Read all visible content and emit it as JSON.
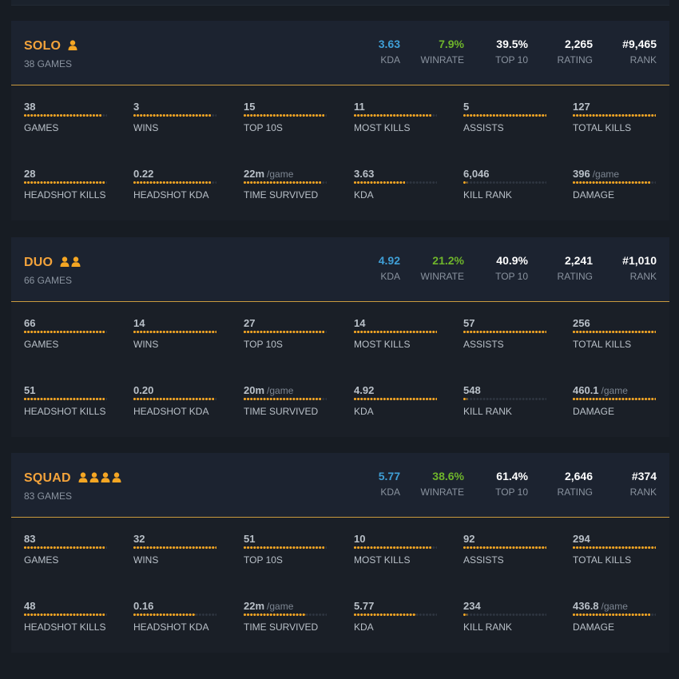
{
  "colors": {
    "accent": "#f5a623",
    "kda": "#3f9fd6",
    "winrate": "#6fb52b"
  },
  "modes": [
    {
      "name": "SOLO",
      "players": 1,
      "games_label": "38 GAMES",
      "header": {
        "kda": {
          "value": "3.63",
          "label": "KDA"
        },
        "winrate": {
          "value": "7.9%",
          "label": "WINRATE"
        },
        "top10": {
          "value": "39.5%",
          "label": "TOP 10"
        },
        "rating": {
          "value": "2,265",
          "label": "RATING"
        },
        "rank": {
          "value": "#9,465",
          "label": "RANK"
        }
      },
      "stats": [
        {
          "value": "38",
          "unit": "",
          "label": "GAMES",
          "fill": 0.93
        },
        {
          "value": "3",
          "unit": "",
          "label": "WINS",
          "fill": 0.93
        },
        {
          "value": "15",
          "unit": "",
          "label": "TOP 10S",
          "fill": 0.97
        },
        {
          "value": "11",
          "unit": "",
          "label": "MOST KILLS",
          "fill": 0.93
        },
        {
          "value": "5",
          "unit": "",
          "label": "ASSISTS",
          "fill": 1.0
        },
        {
          "value": "127",
          "unit": "",
          "label": "TOTAL KILLS",
          "fill": 1.0
        },
        {
          "value": "28",
          "unit": "",
          "label": "HEADSHOT KILLS",
          "fill": 0.97
        },
        {
          "value": "0.22",
          "unit": "",
          "label": "HEADSHOT KDA",
          "fill": 0.93
        },
        {
          "value": "22m",
          "unit": "/game",
          "label": "TIME SURVIVED",
          "fill": 0.93
        },
        {
          "value": "3.63",
          "unit": "",
          "label": "KDA",
          "fill": 0.62
        },
        {
          "value": "6,046",
          "unit": "",
          "label": "KILL RANK",
          "fill": 0.05
        },
        {
          "value": "396",
          "unit": "/game",
          "label": "DAMAGE",
          "fill": 0.93
        }
      ]
    },
    {
      "name": "DUO",
      "players": 2,
      "games_label": "66 GAMES",
      "header": {
        "kda": {
          "value": "4.92",
          "label": "KDA"
        },
        "winrate": {
          "value": "21.2%",
          "label": "WINRATE"
        },
        "top10": {
          "value": "40.9%",
          "label": "TOP 10"
        },
        "rating": {
          "value": "2,241",
          "label": "RATING"
        },
        "rank": {
          "value": "#1,010",
          "label": "RANK"
        }
      },
      "stats": [
        {
          "value": "66",
          "unit": "",
          "label": "GAMES",
          "fill": 0.97
        },
        {
          "value": "14",
          "unit": "",
          "label": "WINS",
          "fill": 1.0
        },
        {
          "value": "27",
          "unit": "",
          "label": "TOP 10S",
          "fill": 0.97
        },
        {
          "value": "14",
          "unit": "",
          "label": "MOST KILLS",
          "fill": 1.0
        },
        {
          "value": "57",
          "unit": "",
          "label": "ASSISTS",
          "fill": 1.0
        },
        {
          "value": "256",
          "unit": "",
          "label": "TOTAL KILLS",
          "fill": 1.0
        },
        {
          "value": "51",
          "unit": "",
          "label": "HEADSHOT KILLS",
          "fill": 0.97
        },
        {
          "value": "0.20",
          "unit": "",
          "label": "HEADSHOT KDA",
          "fill": 0.97
        },
        {
          "value": "20m",
          "unit": "/game",
          "label": "TIME SURVIVED",
          "fill": 0.93
        },
        {
          "value": "4.92",
          "unit": "",
          "label": "KDA",
          "fill": 1.0
        },
        {
          "value": "548",
          "unit": "",
          "label": "KILL RANK",
          "fill": 0.05
        },
        {
          "value": "460.1",
          "unit": "/game",
          "label": "DAMAGE",
          "fill": 1.0
        }
      ]
    },
    {
      "name": "SQUAD",
      "players": 4,
      "games_label": "83 GAMES",
      "header": {
        "kda": {
          "value": "5.77",
          "label": "KDA"
        },
        "winrate": {
          "value": "38.6%",
          "label": "WINRATE"
        },
        "top10": {
          "value": "61.4%",
          "label": "TOP 10"
        },
        "rating": {
          "value": "2,646",
          "label": "RATING"
        },
        "rank": {
          "value": "#374",
          "label": "RANK"
        }
      },
      "stats": [
        {
          "value": "83",
          "unit": "",
          "label": "GAMES",
          "fill": 0.97
        },
        {
          "value": "32",
          "unit": "",
          "label": "WINS",
          "fill": 1.0
        },
        {
          "value": "51",
          "unit": "",
          "label": "TOP 10S",
          "fill": 0.97
        },
        {
          "value": "10",
          "unit": "",
          "label": "MOST KILLS",
          "fill": 0.93
        },
        {
          "value": "92",
          "unit": "",
          "label": "ASSISTS",
          "fill": 1.0
        },
        {
          "value": "294",
          "unit": "",
          "label": "TOTAL KILLS",
          "fill": 1.0
        },
        {
          "value": "48",
          "unit": "",
          "label": "HEADSHOT KILLS",
          "fill": 0.97
        },
        {
          "value": "0.16",
          "unit": "",
          "label": "HEADSHOT KDA",
          "fill": 0.75
        },
        {
          "value": "22m",
          "unit": "/game",
          "label": "TIME SURVIVED",
          "fill": 0.75
        },
        {
          "value": "5.77",
          "unit": "",
          "label": "KDA",
          "fill": 0.75
        },
        {
          "value": "234",
          "unit": "",
          "label": "KILL RANK",
          "fill": 0.05
        },
        {
          "value": "436.8",
          "unit": "/game",
          "label": "DAMAGE",
          "fill": 0.93
        }
      ]
    }
  ]
}
